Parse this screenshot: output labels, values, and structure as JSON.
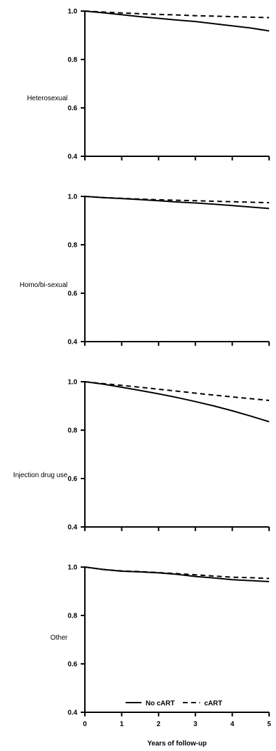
{
  "chart_data": {
    "type": "line",
    "xlabel": "Years of follow-up",
    "x_ticks": [
      "0",
      "1",
      "2",
      "3",
      "4",
      "5"
    ],
    "y_ticks": [
      "0.4",
      "0.6",
      "0.8",
      "1.0"
    ],
    "xlim": [
      0,
      5
    ],
    "ylim": [
      0.4,
      1.0
    ],
    "grid": false,
    "legend": {
      "placement": "bottom-right of last panel",
      "entries": [
        {
          "name": "No cART",
          "style": "solid"
        },
        {
          "name": "cART",
          "style": "dashed"
        }
      ]
    },
    "panels": [
      {
        "label": "Heterosexual",
        "series": [
          {
            "name": "No cART",
            "x": [
              0,
              0.5,
              1,
              1.5,
              2,
              2.5,
              3,
              3.5,
              4,
              4.5,
              5
            ],
            "values": [
              1.0,
              0.993,
              0.985,
              0.977,
              0.97,
              0.963,
              0.957,
              0.948,
              0.939,
              0.93,
              0.918
            ]
          },
          {
            "name": "cART",
            "x": [
              0,
              0.5,
              1,
              1.5,
              2,
              2.5,
              3,
              3.5,
              4,
              4.5,
              5
            ],
            "values": [
              1.0,
              0.996,
              0.992,
              0.989,
              0.986,
              0.984,
              0.981,
              0.979,
              0.977,
              0.975,
              0.973
            ]
          }
        ]
      },
      {
        "label": "Homo/bi-sexual",
        "series": [
          {
            "name": "No cART",
            "x": [
              0,
              0.5,
              1,
              1.5,
              2,
              2.5,
              3,
              3.5,
              4,
              4.5,
              5
            ],
            "values": [
              1.0,
              0.995,
              0.991,
              0.987,
              0.982,
              0.977,
              0.973,
              0.968,
              0.962,
              0.956,
              0.95
            ]
          },
          {
            "name": "cART",
            "x": [
              0,
              0.5,
              1,
              1.5,
              2,
              2.5,
              3,
              3.5,
              4,
              4.5,
              5
            ],
            "values": [
              1.0,
              0.995,
              0.992,
              0.989,
              0.986,
              0.984,
              0.982,
              0.98,
              0.978,
              0.976,
              0.974
            ]
          }
        ]
      },
      {
        "label": "Injection drug use",
        "series": [
          {
            "name": "No cART",
            "x": [
              0,
              0.5,
              1,
              1.5,
              2,
              2.5,
              3,
              3.5,
              4,
              4.5,
              5
            ],
            "values": [
              1.0,
              0.99,
              0.977,
              0.964,
              0.95,
              0.935,
              0.918,
              0.9,
              0.88,
              0.858,
              0.835
            ]
          },
          {
            "name": "cART",
            "x": [
              0,
              0.5,
              1,
              1.5,
              2,
              2.5,
              3,
              3.5,
              4,
              4.5,
              5
            ],
            "values": [
              1.0,
              0.992,
              0.985,
              0.977,
              0.969,
              0.961,
              0.953,
              0.945,
              0.937,
              0.93,
              0.923
            ]
          }
        ]
      },
      {
        "label": "Other",
        "series": [
          {
            "name": "No cART",
            "x": [
              0,
              0.5,
              1,
              1.5,
              2,
              2.5,
              3,
              3.5,
              4,
              4.5,
              5
            ],
            "values": [
              1.0,
              0.99,
              0.983,
              0.98,
              0.976,
              0.97,
              0.961,
              0.955,
              0.948,
              0.944,
              0.94
            ]
          },
          {
            "name": "cART",
            "x": [
              0,
              0.5,
              1,
              1.5,
              2,
              2.5,
              3,
              3.5,
              4,
              4.5,
              5
            ],
            "values": [
              1.0,
              0.99,
              0.984,
              0.981,
              0.977,
              0.973,
              0.968,
              0.963,
              0.958,
              0.956,
              0.953
            ]
          }
        ]
      }
    ]
  }
}
